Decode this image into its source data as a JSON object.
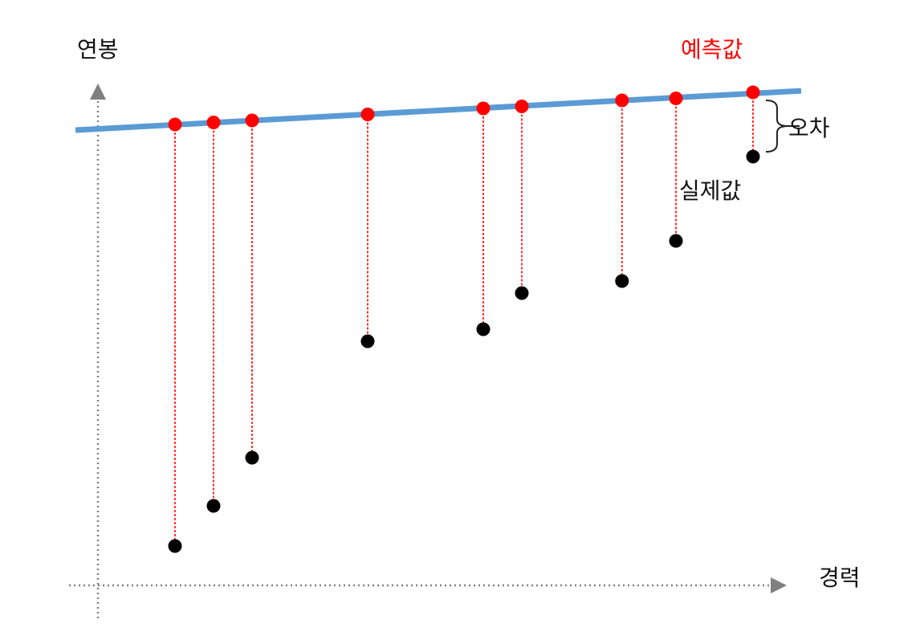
{
  "labels": {
    "y_axis": "연봉",
    "x_axis": "경력",
    "predicted": "예측값",
    "error": "오차",
    "actual": "실제값"
  },
  "colors": {
    "regression_line": "#5b9bd5",
    "predicted_point": "#ff0000",
    "actual_point": "#000000",
    "residual_line": "#ff0000",
    "axis": "#808080",
    "predicted_label": "#ff0000",
    "text": "#111111"
  },
  "chart_data": {
    "type": "scatter",
    "description_free": true,
    "points": [
      {
        "x": 1.0,
        "predicted": 0.0,
        "actual": -10.5
      },
      {
        "x": 1.5,
        "predicted": 0.05,
        "actual": -9.5
      },
      {
        "x": 2.0,
        "predicted": 0.1,
        "actual": -8.3
      },
      {
        "x": 3.5,
        "predicted": 0.25,
        "actual": -5.4
      },
      {
        "x": 5.0,
        "predicted": 0.4,
        "actual": -5.1
      },
      {
        "x": 5.5,
        "predicted": 0.45,
        "actual": -4.2
      },
      {
        "x": 6.8,
        "predicted": 0.6,
        "actual": -3.9
      },
      {
        "x": 7.5,
        "predicted": 0.65,
        "actual": -2.9
      },
      {
        "x": 8.5,
        "predicted": 0.8,
        "actual": -0.8
      }
    ]
  }
}
